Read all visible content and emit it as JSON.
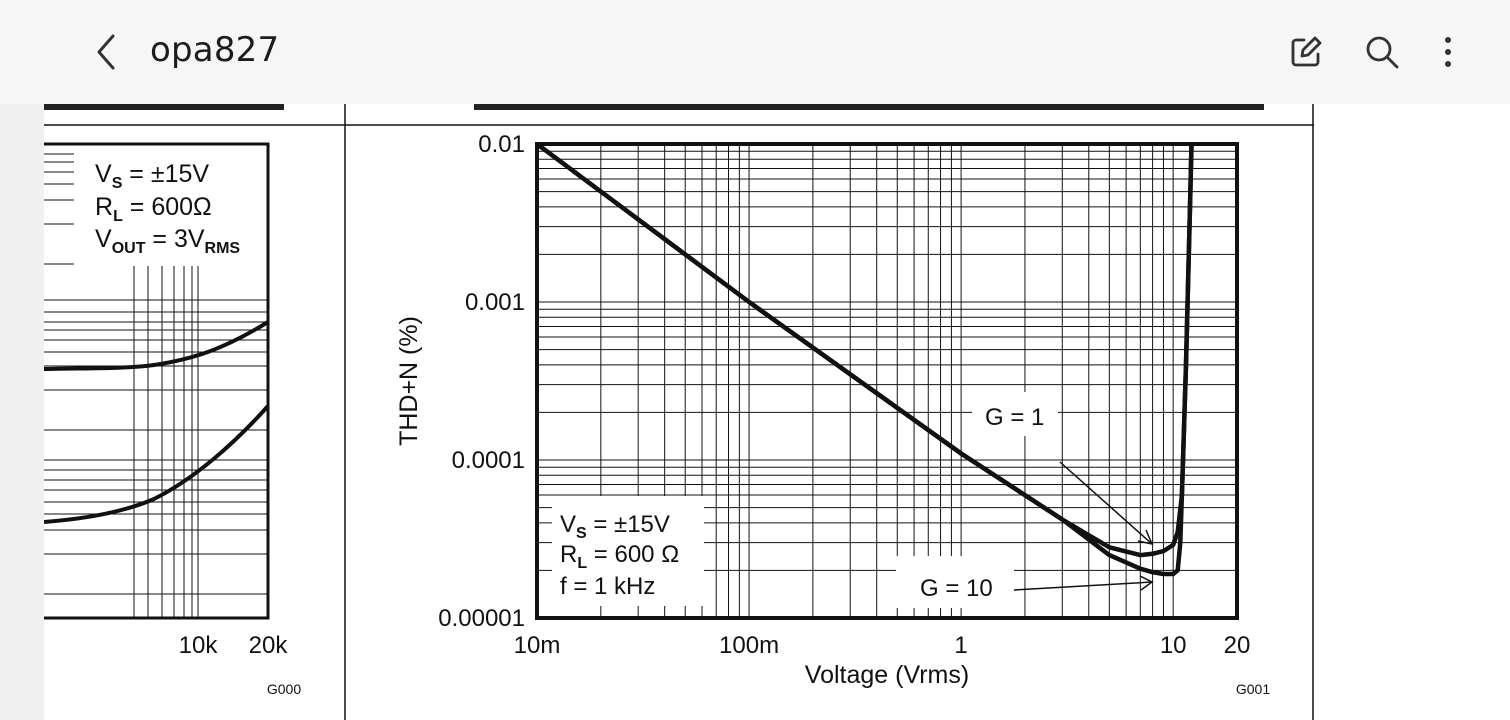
{
  "app": {
    "title": "opa827",
    "back_icon": "chevron-left-icon",
    "actions": [
      {
        "name": "edit-icon"
      },
      {
        "name": "search-icon"
      },
      {
        "name": "more-vert-icon"
      }
    ]
  },
  "doc": {
    "left_figure": {
      "legend": {
        "line1_main": "V",
        "line1_sub": "S",
        "line1_rest": " = ±15V",
        "line2_main": "R",
        "line2_sub": "L",
        "line2_rest": " = 600Ω",
        "line3_main": "V",
        "line3_sub": "OUT",
        "line3_rest": " = 3V",
        "line3_sub2": "RMS"
      },
      "x_ticks": [
        "10k",
        "20k"
      ],
      "fig_code": "G000"
    },
    "right_figure": {
      "fig_code": "G001",
      "legend": {
        "line1_main": "V",
        "line1_sub": "S",
        "line1_rest": " = ±15V",
        "line2_main": "R",
        "line2_sub": "L",
        "line2_rest": " = 600 Ω",
        "line3": "f = 1 kHz"
      },
      "annotations": {
        "g1": "G = 1",
        "g10": "G = 10"
      }
    }
  },
  "chart_data": {
    "type": "line",
    "xlabel": "Voltage (Vrms)",
    "ylabel": "THD+N (%)",
    "x_scale": "log",
    "y_scale": "log",
    "xlim": [
      0.01,
      20
    ],
    "ylim": [
      1e-05,
      0.01
    ],
    "x_ticks": [
      {
        "value": 0.01,
        "label": "10m"
      },
      {
        "value": 0.1,
        "label": "100m"
      },
      {
        "value": 1,
        "label": "1"
      },
      {
        "value": 10,
        "label": "10"
      },
      {
        "value": 20,
        "label": "20"
      }
    ],
    "y_ticks": [
      {
        "value": 0.01,
        "label": "0.01"
      },
      {
        "value": 0.001,
        "label": "0.001"
      },
      {
        "value": 0.0001,
        "label": "0.0001"
      },
      {
        "value": 1e-05,
        "label": "0.00001"
      }
    ],
    "grid": true,
    "series": [
      {
        "name": "G = 1",
        "points": [
          [
            0.01,
            0.01
          ],
          [
            0.1,
            0.001
          ],
          [
            1,
            0.00011
          ],
          [
            3,
            4.2e-05
          ],
          [
            5,
            2.8e-05
          ],
          [
            7,
            2.5e-05
          ],
          [
            8,
            2.55e-05
          ],
          [
            9,
            2.65e-05
          ],
          [
            10,
            2.9e-05
          ],
          [
            10.5,
            3.5e-05
          ],
          [
            11,
            6e-05
          ],
          [
            11.5,
            0.0004
          ],
          [
            12,
            0.004
          ],
          [
            12.2,
            0.01
          ]
        ]
      },
      {
        "name": "G = 10",
        "points": [
          [
            0.01,
            0.01
          ],
          [
            0.1,
            0.001
          ],
          [
            1,
            0.00011
          ],
          [
            3,
            4.2e-05
          ],
          [
            5,
            2.5e-05
          ],
          [
            7,
            2.05e-05
          ],
          [
            8,
            1.95e-05
          ],
          [
            9,
            1.9e-05
          ],
          [
            10,
            1.9e-05
          ],
          [
            10.5,
            2e-05
          ],
          [
            10.8,
            3e-05
          ],
          [
            11,
            6e-05
          ],
          [
            11.5,
            0.0004
          ],
          [
            12,
            0.004
          ],
          [
            12.2,
            0.01
          ]
        ]
      }
    ],
    "left_chart_fragment": {
      "type": "line",
      "x_ticks": [
        "10k",
        "20k"
      ],
      "series": [
        {
          "description_curve": "upper",
          "points_shape": "flat then rising"
        },
        {
          "description_curve": "lower",
          "points_shape": "rising"
        }
      ]
    }
  }
}
